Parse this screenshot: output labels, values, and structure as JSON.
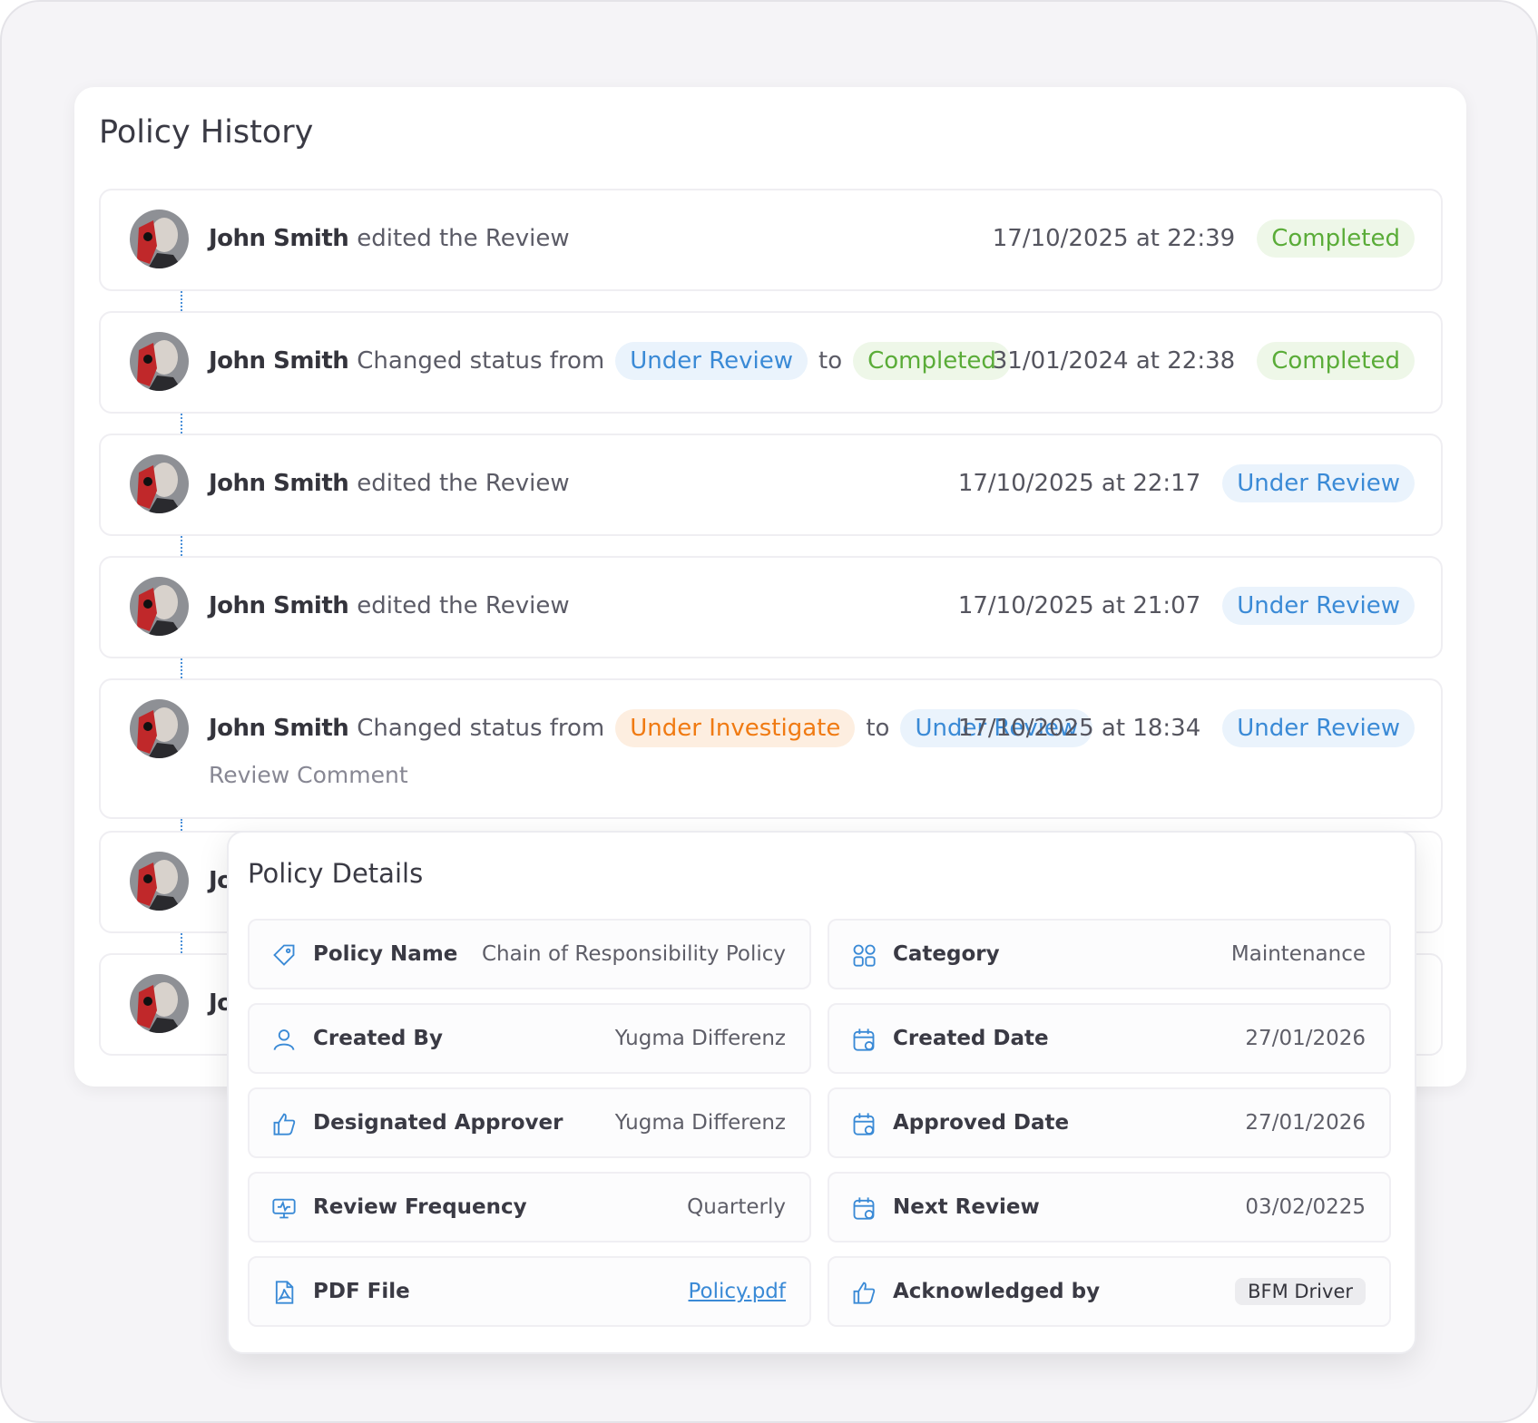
{
  "history": {
    "title": "Policy History",
    "entries": [
      {
        "user": "John Smith",
        "action": "edited the Review",
        "date": "17/10/2025 at 22:39",
        "status": {
          "text": "Completed",
          "tone": "green"
        }
      },
      {
        "user": "John Smith",
        "action": "Changed status from",
        "from": {
          "text": "Under Review",
          "tone": "blue"
        },
        "joiner": "to",
        "to": {
          "text": "Completed",
          "tone": "green"
        },
        "date": "31/01/2024 at 22:38",
        "status": {
          "text": "Completed",
          "tone": "green"
        }
      },
      {
        "user": "John Smith",
        "action": "edited the Review",
        "date": "17/10/2025 at 22:17",
        "status": {
          "text": "Under Review",
          "tone": "blue"
        }
      },
      {
        "user": "John Smith",
        "action": "edited the Review",
        "date": "17/10/2025 at 21:07",
        "status": {
          "text": "Under Review",
          "tone": "blue"
        }
      },
      {
        "user": "John Smith",
        "action": "Changed status from",
        "from": {
          "text": "Under Investigate",
          "tone": "orange"
        },
        "joiner": "to",
        "to": {
          "text": "Under Review",
          "tone": "blue"
        },
        "date": "17/10/2025 at 18:34",
        "status": {
          "text": "Under Review",
          "tone": "blue"
        },
        "comment": "Review Comment"
      },
      {
        "user": "John Smith"
      },
      {
        "user": "John Smith"
      }
    ]
  },
  "details": {
    "title": "Policy Details",
    "fields": [
      {
        "icon": "tag",
        "label": "Policy Name",
        "value": "Chain of Responsibility Policy"
      },
      {
        "icon": "grid",
        "label": "Category",
        "value": "Maintenance"
      },
      {
        "icon": "user",
        "label": "Created By",
        "value": "Yugma Differenz"
      },
      {
        "icon": "calendar",
        "label": "Created Date",
        "value": "27/01/2026"
      },
      {
        "icon": "thumb",
        "label": "Designated Approver",
        "value": "Yugma Differenz"
      },
      {
        "icon": "calendar",
        "label": "Approved Date",
        "value": "27/01/2026"
      },
      {
        "icon": "monitor",
        "label": "Review Frequency",
        "value": "Quarterly"
      },
      {
        "icon": "calendar",
        "label": "Next Review",
        "value": "03/02/0225"
      },
      {
        "icon": "pdf",
        "label": "PDF File",
        "value": "Policy.pdf",
        "style": "link"
      },
      {
        "icon": "thumb",
        "label": "Acknowledged by",
        "value": "BFM Driver",
        "style": "chip"
      }
    ]
  }
}
